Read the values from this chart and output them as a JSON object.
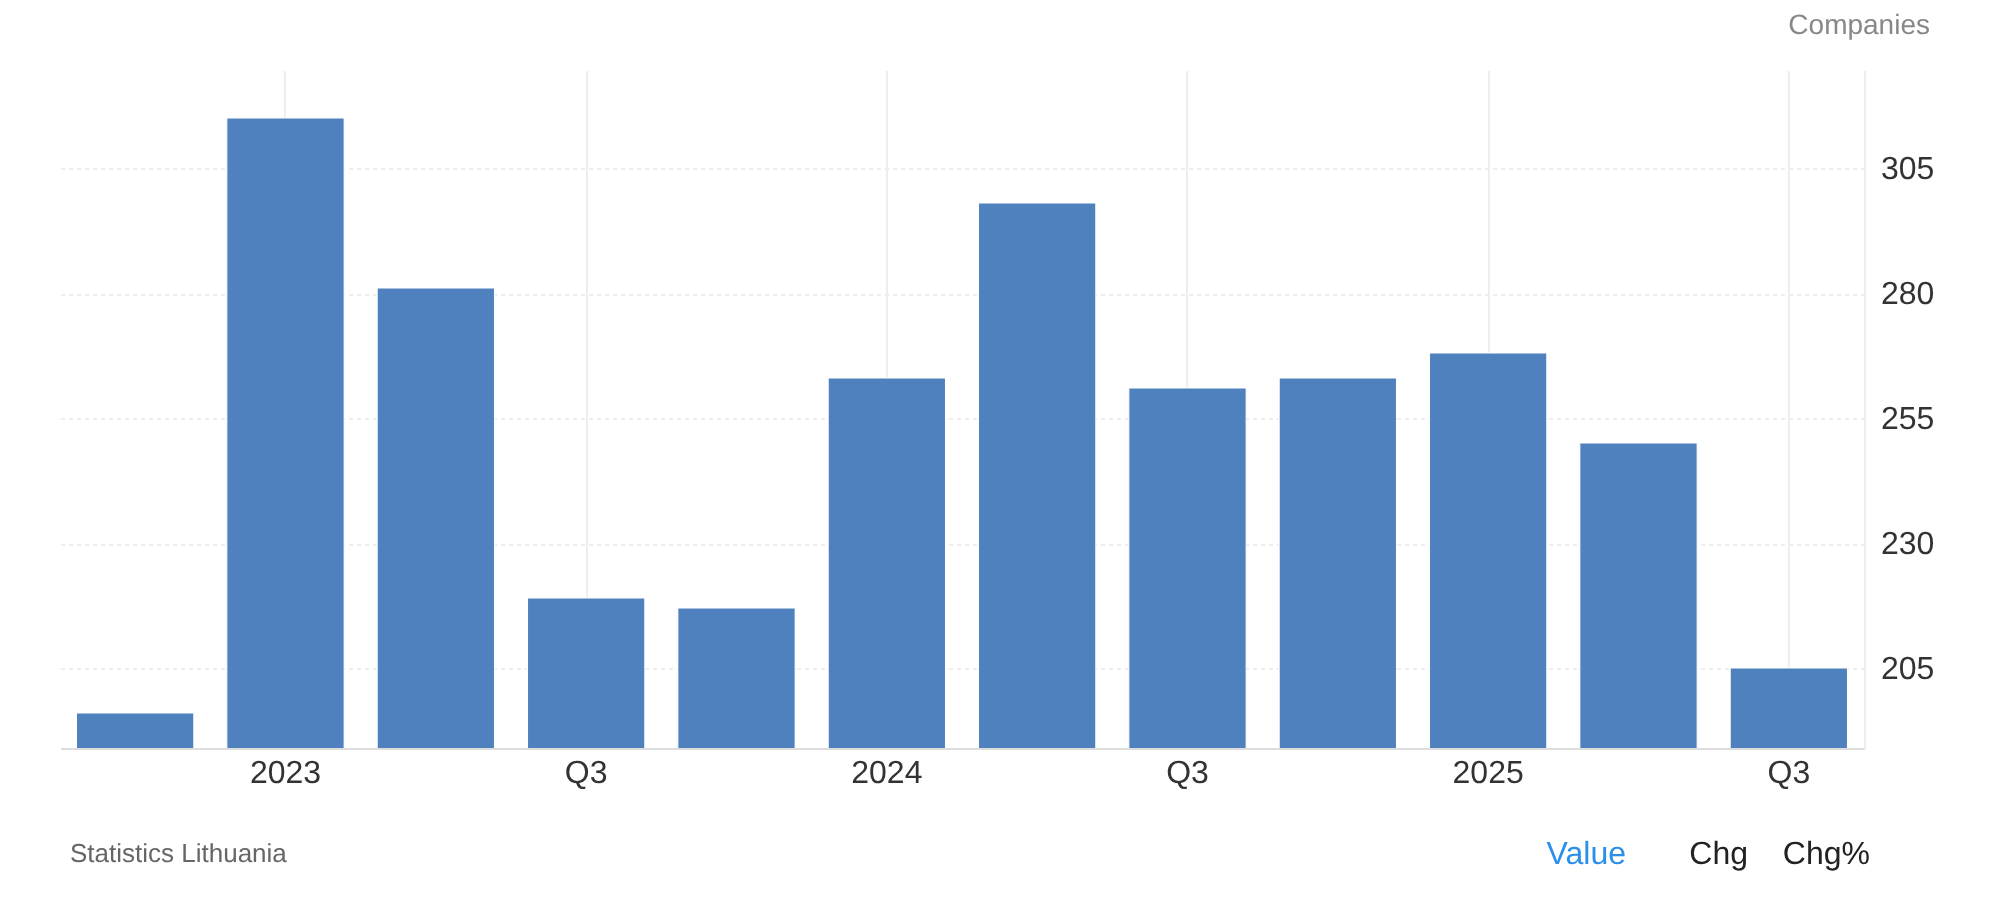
{
  "chart_data": {
    "type": "bar",
    "ylabel": "Companies",
    "categories": [
      null,
      "2023",
      null,
      "Q3",
      null,
      "2024",
      null,
      "Q3",
      null,
      "2025",
      null,
      "Q3"
    ],
    "values": [
      196,
      315,
      281,
      219,
      217,
      263,
      298,
      261,
      263,
      268,
      250,
      205
    ],
    "color": "#4e81bd",
    "ylim": [
      189,
      324.6
    ],
    "yticks": [
      205,
      230,
      255,
      280,
      305
    ],
    "grid": true,
    "annotations": [
      "Statistics Lithuania",
      "Value",
      "Chg",
      "Chg%"
    ]
  }
}
